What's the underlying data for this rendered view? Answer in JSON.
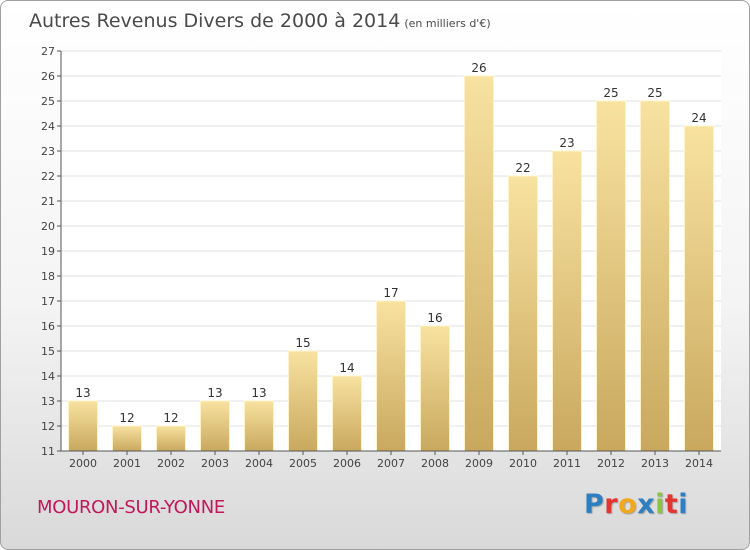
{
  "header": {
    "title": "Autres Revenus Divers de 2000 à 2014",
    "subtitle": "(en milliers d'€)"
  },
  "footer": {
    "city": "MOURON-SUR-YONNE",
    "logo_letters": [
      "P",
      "r",
      "o",
      "x",
      "i",
      "t",
      "i"
    ],
    "logo_colors": [
      "#2e7fc2",
      "#e3342f",
      "#f2a81d",
      "#2e7fc2",
      "#8bc53f",
      "#e3342f",
      "#2e7fc2"
    ]
  },
  "chart_data": {
    "type": "bar",
    "title": "Autres Revenus Divers de 2000 à 2014",
    "subtitle": "(en milliers d'€)",
    "categories": [
      "2000",
      "2001",
      "2002",
      "2003",
      "2004",
      "2005",
      "2006",
      "2007",
      "2008",
      "2009",
      "2010",
      "2011",
      "2012",
      "2013",
      "2014"
    ],
    "values": [
      13,
      12,
      12,
      13,
      13,
      15,
      14,
      17,
      16,
      26,
      22,
      23,
      25,
      25,
      24
    ],
    "data_labels": [
      "13",
      "12",
      "12",
      "13",
      "13",
      "15",
      "14",
      "17",
      "16",
      "26",
      "22",
      "23",
      "25",
      "25",
      "24"
    ],
    "ylim": [
      11,
      27
    ],
    "yticks": [
      11,
      12,
      13,
      14,
      15,
      16,
      17,
      18,
      19,
      20,
      21,
      22,
      23,
      24,
      25,
      26,
      27
    ],
    "grid": true,
    "bar_color_top": "#f8e2a0",
    "bar_color_bottom": "#c9a85e",
    "xlabel": "",
    "ylabel": ""
  }
}
